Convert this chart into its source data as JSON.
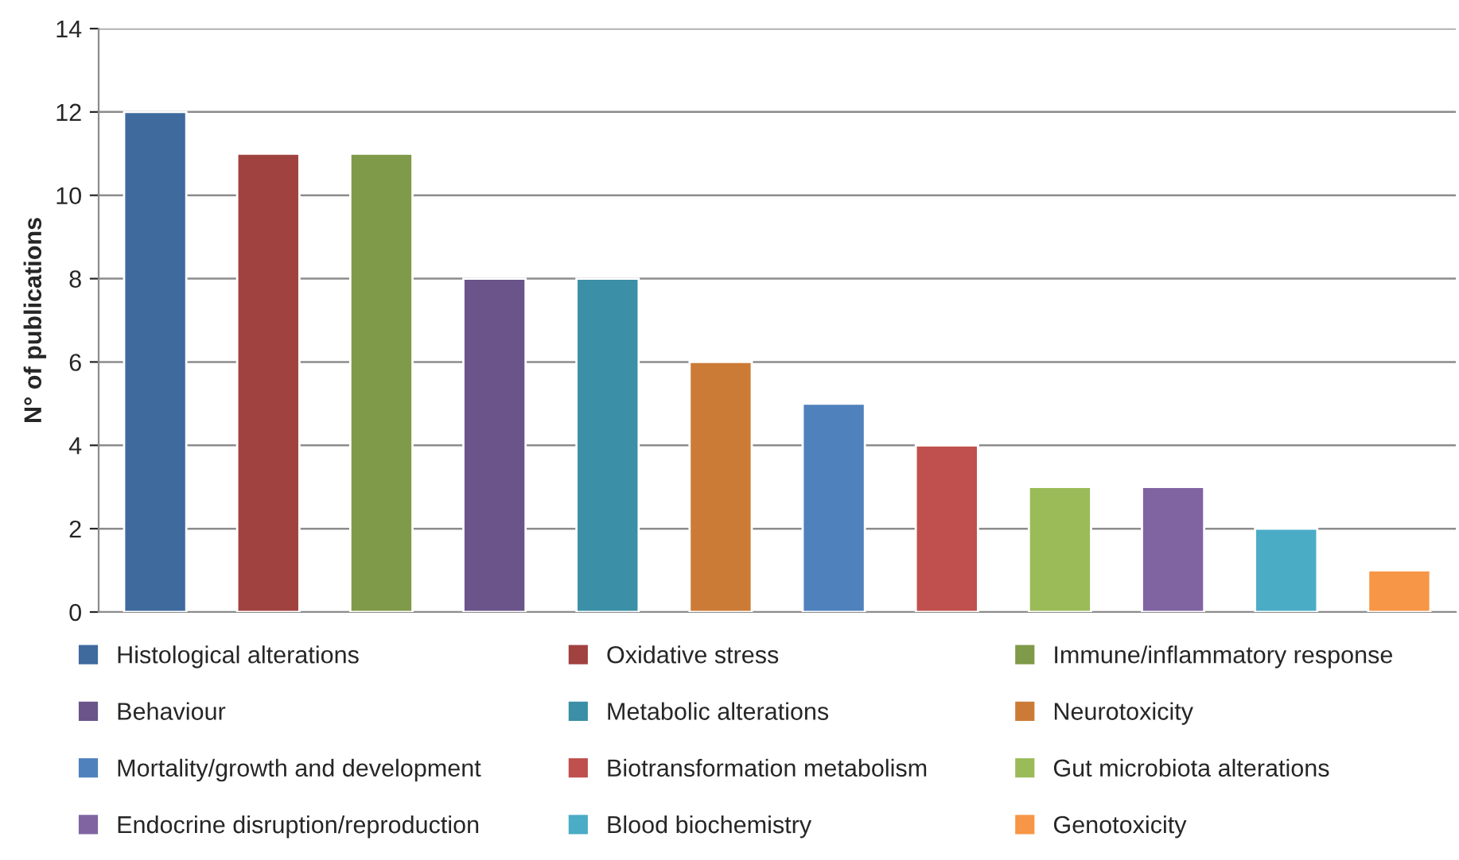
{
  "chart_data": {
    "type": "bar",
    "ylabel": "N° of publications",
    "categories": [
      null,
      null,
      null,
      null,
      null,
      null,
      null,
      null,
      null,
      null,
      null,
      null
    ],
    "series": [
      {
        "name": "Histological alterations",
        "color": "#3f6a9e",
        "values": [
          12,
          null,
          null,
          null,
          null,
          null,
          null,
          null,
          null,
          null,
          null,
          null
        ]
      },
      {
        "name": "Oxidative stress",
        "color": "#a04240",
        "values": [
          null,
          11,
          null,
          null,
          null,
          null,
          null,
          null,
          null,
          null,
          null,
          null
        ]
      },
      {
        "name": "Immune/inflammatory response",
        "color": "#7f9a48",
        "values": [
          null,
          null,
          11,
          null,
          null,
          null,
          null,
          null,
          null,
          null,
          null,
          null
        ]
      },
      {
        "name": "Behaviour",
        "color": "#6a548a",
        "values": [
          null,
          null,
          null,
          8,
          null,
          null,
          null,
          null,
          null,
          null,
          null,
          null
        ]
      },
      {
        "name": "Metabolic alterations",
        "color": "#3b8fa6",
        "values": [
          null,
          null,
          null,
          null,
          8,
          null,
          null,
          null,
          null,
          null,
          null,
          null
        ]
      },
      {
        "name": "Neurotoxicity",
        "color": "#cc7b37",
        "values": [
          null,
          null,
          null,
          null,
          null,
          6,
          null,
          null,
          null,
          null,
          null,
          null
        ]
      },
      {
        "name": "Mortality/growth and development",
        "color": "#4f81bd",
        "values": [
          null,
          null,
          null,
          null,
          null,
          null,
          5,
          null,
          null,
          null,
          null,
          null
        ]
      },
      {
        "name": "Biotransformation metabolism",
        "color": "#c0504d",
        "values": [
          null,
          null,
          null,
          null,
          null,
          null,
          null,
          4,
          null,
          null,
          null,
          null
        ]
      },
      {
        "name": "Gut microbiota alterations",
        "color": "#9bbb59",
        "values": [
          null,
          null,
          null,
          null,
          null,
          null,
          null,
          null,
          3,
          null,
          null,
          null
        ]
      },
      {
        "name": "Endocrine disruption/reproduction",
        "color": "#8064a2",
        "values": [
          null,
          null,
          null,
          null,
          null,
          null,
          null,
          null,
          null,
          3,
          null,
          null
        ]
      },
      {
        "name": "Blood biochemistry",
        "color": "#4bacc6",
        "values": [
          null,
          null,
          null,
          null,
          null,
          null,
          null,
          null,
          null,
          null,
          2,
          null
        ]
      },
      {
        "name": "Genotoxicity",
        "color": "#f79646",
        "values": [
          null,
          null,
          null,
          null,
          null,
          null,
          null,
          null,
          null,
          null,
          null,
          1
        ]
      }
    ],
    "ylim": [
      0,
      14
    ],
    "yticks": [
      0,
      2,
      4,
      6,
      8,
      10,
      12,
      14
    ],
    "grid": "y",
    "legend": "bottom",
    "tick_labels": "y"
  }
}
